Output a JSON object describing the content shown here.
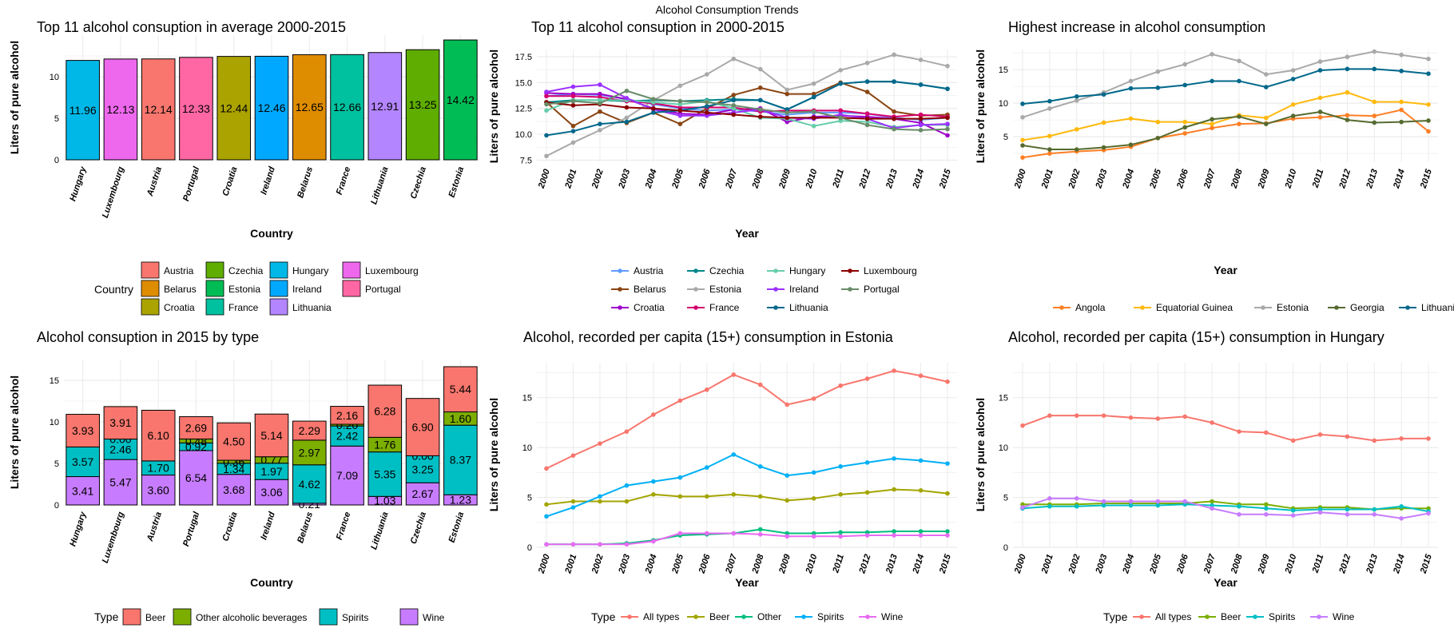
{
  "page_title": "Alcohol Consumption Trends",
  "colors": {
    "grid": "#ebebeb",
    "axis_text": "#000000",
    "bar_stroke": "#000000"
  },
  "chart_data": [
    {
      "id": "top11-avg",
      "type": "bar",
      "title": "Top 11 alcohol consuption in average 2000-2015",
      "xlabel": "Country",
      "ylabel": "Liters of pure alcohol",
      "ylim": [
        0,
        15
      ],
      "yticks": [
        0,
        5,
        10
      ],
      "grid": true,
      "categories": [
        "Hungary",
        "Luxembourg",
        "Austria",
        "Portugal",
        "Croatia",
        "Ireland",
        "Belarus",
        "France",
        "Lithuania",
        "Czechia",
        "Estonia"
      ],
      "values": [
        11.96,
        12.13,
        12.14,
        12.33,
        12.44,
        12.46,
        12.65,
        12.66,
        12.91,
        13.25,
        14.42
      ],
      "data_labels": [
        "11.96",
        "12.13",
        "12.14",
        "12.33",
        "12.44",
        "12.46",
        "12.65",
        "12.66",
        "12.91",
        "13.25",
        "14.42"
      ],
      "colors": [
        "#00b8e7",
        "#ed68ed",
        "#f8766d",
        "#ff67a4",
        "#aba300",
        "#00a9ff",
        "#de8c00",
        "#00c19f",
        "#b385ff",
        "#5ead00",
        "#00bc55"
      ],
      "legend": {
        "title": "Country",
        "position": "bottom",
        "ncol": 4,
        "entries": [
          {
            "label": "Austria",
            "color": "#f8766d"
          },
          {
            "label": "Belarus",
            "color": "#de8c00"
          },
          {
            "label": "Croatia",
            "color": "#aba300"
          },
          {
            "label": "Czechia",
            "color": "#5ead00"
          },
          {
            "label": "Estonia",
            "color": "#00bc55"
          },
          {
            "label": "France",
            "color": "#00c19f"
          },
          {
            "label": "Hungary",
            "color": "#00b8e7"
          },
          {
            "label": "Ireland",
            "color": "#00a9ff"
          },
          {
            "label": "Lithuania",
            "color": "#b385ff"
          },
          {
            "label": "Luxembourg",
            "color": "#ed68ed"
          },
          {
            "label": "Portugal",
            "color": "#ff67a4"
          }
        ]
      }
    },
    {
      "id": "top11-trend",
      "type": "line",
      "title": "Top 11 alcohol consuption in 2000-2015",
      "xlabel": "Year",
      "ylabel": "Liters of pure alcohol",
      "ylim": [
        7.3,
        18.2
      ],
      "yticks": [
        7.5,
        10.0,
        12.5,
        15.0,
        17.5
      ],
      "ytick_labels": [
        "7.5",
        "10.0",
        "12.5",
        "15.0",
        "17.5"
      ],
      "x": [
        2000,
        2001,
        2002,
        2003,
        2004,
        2005,
        2006,
        2007,
        2008,
        2009,
        2010,
        2011,
        2012,
        2013,
        2014,
        2015
      ],
      "grid": true,
      "series": [
        {
          "name": "Austria",
          "color": "#619cff",
          "values": [
            13.7,
            13.9,
            13.8,
            13.4,
            12.9,
            12.5,
            12.3,
            12.4,
            12.2,
            11.9,
            12.1,
            12.1,
            12.0,
            11.6,
            11.4,
            11.6
          ]
        },
        {
          "name": "Belarus",
          "color": "#8b4513",
          "values": [
            13.1,
            10.8,
            12.2,
            11.1,
            12.1,
            11.0,
            12.5,
            13.8,
            14.5,
            13.9,
            13.9,
            15.0,
            14.1,
            12.2,
            11.8,
            11.9
          ]
        },
        {
          "name": "Croatia",
          "color": "#9e00ca",
          "values": [
            14.0,
            13.9,
            13.9,
            13.4,
            12.5,
            12.0,
            11.9,
            12.4,
            12.5,
            11.2,
            11.7,
            11.8,
            11.7,
            11.5,
            11.1,
            9.9
          ]
        },
        {
          "name": "Czechia",
          "color": "#00868b",
          "values": [
            13.1,
            13.3,
            13.3,
            13.2,
            13.3,
            13.2,
            13.3,
            13.4,
            13.3,
            12.4,
            13.6,
            14.9,
            15.1,
            15.1,
            14.8,
            14.4
          ]
        },
        {
          "name": "Estonia",
          "color": "#a9a9a9",
          "values": [
            7.9,
            9.2,
            10.4,
            11.6,
            13.3,
            14.7,
            15.8,
            17.3,
            16.3,
            14.3,
            14.9,
            16.2,
            16.9,
            17.7,
            17.2,
            16.6
          ]
        },
        {
          "name": "France",
          "color": "#d6006e",
          "values": [
            13.7,
            13.7,
            13.6,
            13.2,
            13.0,
            12.6,
            12.6,
            12.6,
            12.2,
            12.3,
            12.3,
            12.3,
            12.0,
            11.7,
            11.9,
            11.7
          ]
        },
        {
          "name": "Hungary",
          "color": "#66cdaa",
          "values": [
            12.3,
            13.3,
            13.3,
            13.3,
            13.1,
            12.9,
            13.2,
            12.5,
            11.6,
            11.5,
            10.8,
            11.3,
            11.2,
            10.7,
            10.9,
            10.9
          ]
        },
        {
          "name": "Ireland",
          "color": "#9b30ff",
          "values": [
            14.1,
            14.6,
            14.8,
            13.5,
            12.4,
            11.8,
            11.8,
            12.1,
            12.4,
            11.6,
            11.5,
            11.9,
            11.5,
            10.6,
            10.9,
            11.0
          ]
        },
        {
          "name": "Lithuania",
          "color": "#00688b",
          "values": [
            9.9,
            10.3,
            11.0,
            11.2,
            12.1,
            12.3,
            12.7,
            13.3,
            13.3,
            12.4,
            13.6,
            14.9,
            15.1,
            15.1,
            14.8,
            14.4
          ]
        },
        {
          "name": "Luxembourg",
          "color": "#8b0000",
          "values": [
            13.1,
            12.8,
            12.9,
            12.6,
            12.5,
            12.3,
            12.1,
            11.9,
            11.7,
            11.6,
            11.6,
            11.6,
            11.5,
            11.5,
            11.5,
            11.6
          ]
        },
        {
          "name": "Portugal",
          "color": "#698b69",
          "values": [
            12.9,
            13.2,
            13.0,
            14.2,
            13.4,
            13.2,
            13.1,
            12.8,
            12.4,
            12.1,
            12.2,
            11.6,
            10.9,
            10.5,
            10.4,
            10.5
          ]
        }
      ],
      "legend": {
        "position": "bottom",
        "ncol": 4,
        "entries": [
          "Austria",
          "Belarus",
          "Croatia",
          "Czechia",
          "Estonia",
          "France",
          "Hungary",
          "Ireland",
          "Lithuania",
          "Luxembourg",
          "Portugal"
        ]
      }
    },
    {
      "id": "highest-increase",
      "type": "line",
      "title": "Highest increase in alcohol consumption",
      "xlabel": "Year",
      "ylabel": "Liters of pure alcohol",
      "ylim": [
        1.2,
        18.0
      ],
      "yticks": [
        5,
        10,
        15
      ],
      "ytick_labels": [
        "5",
        "10",
        "15"
      ],
      "x": [
        2000,
        2001,
        2002,
        2003,
        2004,
        2005,
        2006,
        2007,
        2008,
        2009,
        2010,
        2011,
        2012,
        2013,
        2014,
        2015
      ],
      "grid": true,
      "series": [
        {
          "name": "Angola",
          "color": "#ff7f24",
          "values": [
            1.9,
            2.5,
            2.8,
            3.0,
            3.5,
            4.8,
            5.5,
            6.3,
            6.9,
            7.0,
            7.7,
            7.9,
            8.2,
            8.1,
            9.0,
            5.8
          ]
        },
        {
          "name": "Equatorial Guinea",
          "color": "#ffb90f",
          "values": [
            4.5,
            5.1,
            6.1,
            7.1,
            7.7,
            7.2,
            7.2,
            6.9,
            8.2,
            7.8,
            9.8,
            10.8,
            11.6,
            10.2,
            10.2,
            9.8
          ]
        },
        {
          "name": "Estonia",
          "color": "#a9a9a9",
          "values": [
            7.9,
            9.2,
            10.4,
            11.6,
            13.3,
            14.7,
            15.8,
            17.3,
            16.3,
            14.3,
            14.9,
            16.2,
            16.9,
            17.7,
            17.2,
            16.6
          ]
        },
        {
          "name": "Georgia",
          "color": "#556b2f",
          "values": [
            3.7,
            3.1,
            3.1,
            3.4,
            3.8,
            4.8,
            6.4,
            7.6,
            8.0,
            6.9,
            8.1,
            8.7,
            7.5,
            7.1,
            7.2,
            7.4
          ]
        },
        {
          "name": "Lithuania",
          "color": "#00688b",
          "values": [
            9.9,
            10.3,
            11.0,
            11.3,
            12.2,
            12.3,
            12.7,
            13.3,
            13.3,
            12.4,
            13.6,
            14.9,
            15.1,
            15.1,
            14.8,
            14.4
          ]
        }
      ],
      "legend": {
        "position": "bottom",
        "ncol": 5,
        "entries": [
          "Angola",
          "Equatorial Guinea",
          "Estonia",
          "Georgia",
          "Lithuania"
        ]
      }
    },
    {
      "id": "by-type-2015",
      "type": "bar",
      "stacked": true,
      "title": "Alcohol consuption in 2015 by type",
      "xlabel": "Country",
      "ylabel": "Liters of pure alcohol",
      "ylim": [
        0,
        17.5
      ],
      "yticks": [
        0,
        5,
        10,
        15
      ],
      "grid": true,
      "categories": [
        "Hungary",
        "Luxembourg",
        "Austria",
        "Portugal",
        "Croatia",
        "Ireland",
        "Belarus",
        "France",
        "Lithuania",
        "Czechia",
        "Estonia"
      ],
      "series": [
        {
          "name": "Wine",
          "color": "#c77cff",
          "values": [
            3.41,
            5.47,
            3.6,
            6.54,
            3.68,
            3.06,
            0.21,
            7.09,
            1.03,
            2.67,
            1.23
          ],
          "labels": [
            "3.41",
            "5.47",
            "3.60",
            "6.54",
            "3.68",
            "3.06",
            "0.21",
            "7.09",
            "1.03",
            "2.67",
            "1.23"
          ]
        },
        {
          "name": "Spirits",
          "color": "#00bfc4",
          "values": [
            3.57,
            2.46,
            1.7,
            0.92,
            1.34,
            1.97,
            4.62,
            2.42,
            5.35,
            3.25,
            8.37
          ],
          "labels": [
            "3.57",
            "2.46",
            "1.70",
            "0.92",
            "1.34",
            "1.97",
            "4.62",
            "2.42",
            "5.35",
            "3.25",
            "8.37"
          ]
        },
        {
          "name": "Other alcoholic beverages",
          "color": "#7cae00",
          "values": [
            0.0,
            0.0,
            0.0,
            0.48,
            0.36,
            0.77,
            2.97,
            0.2,
            1.76,
            0.0,
            1.6
          ],
          "labels": [
            "",
            "0.00",
            "",
            "0.48",
            "0.36",
            "0.77",
            "2.97",
            "0.20",
            "1.76",
            "0.00",
            "1.60"
          ]
        },
        {
          "name": "Beer",
          "color": "#f8766d",
          "values": [
            3.93,
            3.91,
            6.1,
            2.69,
            4.5,
            5.14,
            2.29,
            2.16,
            6.28,
            6.9,
            5.44
          ],
          "labels": [
            "3.93",
            "3.91",
            "6.10",
            "2.69",
            "4.50",
            "5.14",
            "2.29",
            "2.16",
            "6.28",
            "6.90",
            "5.44"
          ]
        }
      ],
      "legend": {
        "title": "Type",
        "position": "bottom",
        "entries": [
          "Beer",
          "Other alcoholic beverages",
          "Spirits",
          "Wine"
        ]
      }
    },
    {
      "id": "estonia-by-type",
      "type": "line",
      "title": "Alcohol, recorded per capita (15+) consumption in Estonia",
      "xlabel": "Year",
      "ylabel": "Liters of pure alcohol",
      "ylim": [
        0,
        18.5
      ],
      "yticks": [
        0,
        5,
        10,
        15
      ],
      "ytick_labels": [
        "0",
        "5",
        "10",
        "15"
      ],
      "x": [
        2000,
        2001,
        2002,
        2003,
        2004,
        2005,
        2006,
        2007,
        2008,
        2009,
        2010,
        2011,
        2012,
        2013,
        2014,
        2015
      ],
      "grid": true,
      "series": [
        {
          "name": "All types",
          "color": "#f8766d",
          "values": [
            7.9,
            9.2,
            10.4,
            11.6,
            13.3,
            14.7,
            15.8,
            17.3,
            16.3,
            14.3,
            14.9,
            16.2,
            16.9,
            17.7,
            17.2,
            16.6
          ]
        },
        {
          "name": "Beer",
          "color": "#a3a500",
          "values": [
            4.3,
            4.6,
            4.6,
            4.6,
            5.3,
            5.1,
            5.1,
            5.3,
            5.1,
            4.7,
            4.9,
            5.3,
            5.5,
            5.8,
            5.7,
            5.4
          ]
        },
        {
          "name": "Other",
          "color": "#00bf7d",
          "values": [
            0.3,
            0.3,
            0.3,
            0.4,
            0.7,
            1.2,
            1.3,
            1.4,
            1.8,
            1.4,
            1.4,
            1.5,
            1.5,
            1.6,
            1.6,
            1.6
          ]
        },
        {
          "name": "Spirits",
          "color": "#00b0f6",
          "values": [
            3.1,
            4.0,
            5.1,
            6.2,
            6.6,
            7.0,
            8.0,
            9.3,
            8.1,
            7.2,
            7.5,
            8.1,
            8.5,
            8.9,
            8.7,
            8.4
          ]
        },
        {
          "name": "Wine",
          "color": "#e76bf3",
          "values": [
            0.3,
            0.3,
            0.3,
            0.3,
            0.6,
            1.4,
            1.4,
            1.4,
            1.3,
            1.1,
            1.1,
            1.1,
            1.2,
            1.2,
            1.2,
            1.2
          ]
        }
      ],
      "legend": {
        "title": "Type",
        "position": "bottom",
        "entries": [
          "All types",
          "Beer",
          "Other",
          "Spirits",
          "Wine"
        ]
      }
    },
    {
      "id": "hungary-by-type",
      "type": "line",
      "title": "Alcohol, recorded per capita (15+) consumption in Hungary",
      "xlabel": "Year",
      "ylabel": "Liters of pure alcohol",
      "ylim": [
        0,
        18.5
      ],
      "yticks": [
        0,
        5,
        10,
        15
      ],
      "ytick_labels": [
        "0",
        "5",
        "10",
        "15"
      ],
      "x": [
        2000,
        2001,
        2002,
        2003,
        2004,
        2005,
        2006,
        2007,
        2008,
        2009,
        2010,
        2011,
        2012,
        2013,
        2014,
        2015
      ],
      "grid": true,
      "series": [
        {
          "name": "All types",
          "color": "#f8766d",
          "values": [
            12.2,
            13.2,
            13.2,
            13.2,
            13.0,
            12.9,
            13.1,
            12.5,
            11.6,
            11.5,
            10.7,
            11.3,
            11.1,
            10.7,
            10.9,
            10.9
          ]
        },
        {
          "name": "Beer",
          "color": "#7cae00",
          "values": [
            4.3,
            4.3,
            4.3,
            4.4,
            4.4,
            4.4,
            4.4,
            4.6,
            4.3,
            4.3,
            3.9,
            4.0,
            4.0,
            3.8,
            3.9,
            3.9
          ]
        },
        {
          "name": "Spirits",
          "color": "#00bfc4",
          "values": [
            3.9,
            4.1,
            4.1,
            4.2,
            4.2,
            4.2,
            4.3,
            4.2,
            4.1,
            3.9,
            3.7,
            3.8,
            3.8,
            3.8,
            4.1,
            3.6
          ]
        },
        {
          "name": "Wine",
          "color": "#c77cff",
          "values": [
            4.0,
            4.9,
            4.9,
            4.6,
            4.6,
            4.6,
            4.6,
            3.9,
            3.3,
            3.3,
            3.2,
            3.5,
            3.3,
            3.3,
            2.9,
            3.4
          ]
        }
      ],
      "legend": {
        "title": "Type",
        "position": "bottom",
        "entries": [
          "All types",
          "Beer",
          "Spirits",
          "Wine"
        ]
      }
    }
  ]
}
